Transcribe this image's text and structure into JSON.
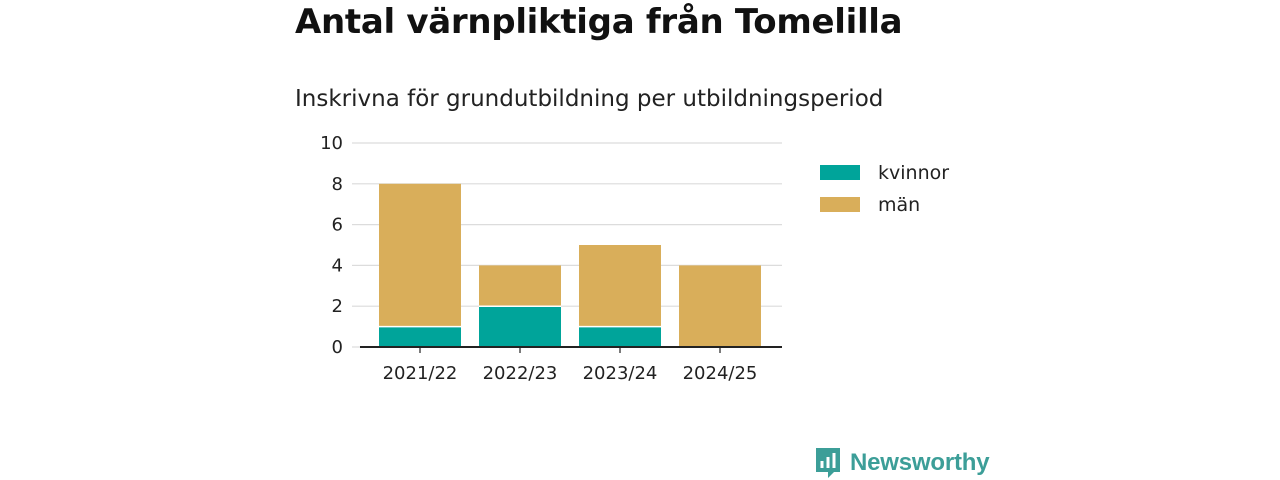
{
  "page": {
    "title": "Antal värnpliktiga från Tomelilla",
    "subtitle": "Inskrivna för grundutbildning per utbildningsperiod",
    "brand": "Newsworthy"
  },
  "chart_data": {
    "type": "bar",
    "stacked": true,
    "categories": [
      "2021/22",
      "2022/23",
      "2023/24",
      "2024/25"
    ],
    "series": [
      {
        "name": "kvinnor",
        "values": [
          1,
          2,
          1,
          0
        ],
        "color": "#00a49a"
      },
      {
        "name": "män",
        "values": [
          7,
          2,
          4,
          4
        ],
        "color": "#d9ae5a"
      }
    ],
    "ylim": [
      0,
      10
    ],
    "yticks": [
      0,
      2,
      4,
      6,
      8,
      10
    ],
    "grid": true,
    "legend": "right",
    "xlabel": "",
    "ylabel": ""
  }
}
